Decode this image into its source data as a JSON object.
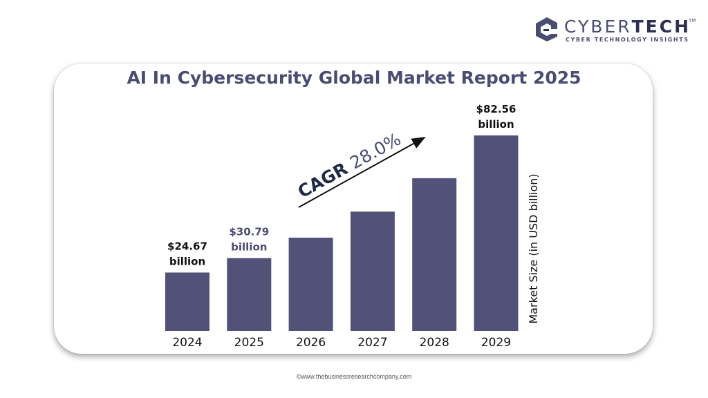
{
  "brand": {
    "name_light": "CYBER",
    "name_bold": "TECH",
    "trademark": "TM",
    "tagline": "CYBER TECHNOLOGY INSIGHTS"
  },
  "footer": "©www.thebusinessresearchcompany.com",
  "chart_data": {
    "type": "bar",
    "title": "AI In Cybersecurity Global Market Report 2025",
    "categories": [
      "2024",
      "2025",
      "2026",
      "2027",
      "2028",
      "2029"
    ],
    "values": [
      24.67,
      30.79,
      39.4,
      50.4,
      64.5,
      82.56
    ],
    "value_labels": [
      {
        "index": 0,
        "amount": "$24.67",
        "unit": "billion",
        "color": "#111111"
      },
      {
        "index": 1,
        "amount": "$30.79",
        "unit": "billion",
        "color": "#4a4d72"
      },
      {
        "index": 5,
        "amount": "$82.56",
        "unit": "billion",
        "color": "#111111"
      }
    ],
    "annotation": {
      "prefix": "CAGR",
      "rate": "28.0%"
    },
    "ylabel": "Market Size (in USD billion)",
    "xlabel": "",
    "ylim": [
      0,
      100
    ],
    "bar_color": "#525278",
    "grid": false
  }
}
